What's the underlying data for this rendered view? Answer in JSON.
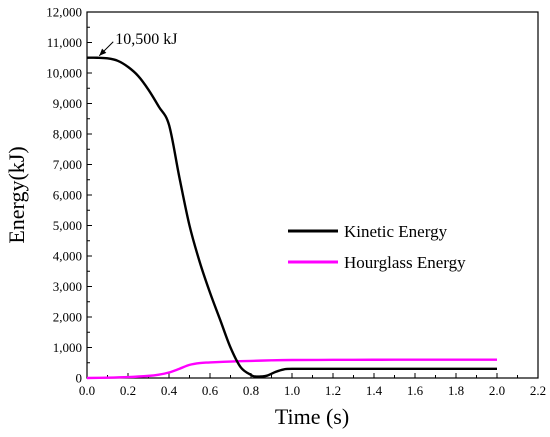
{
  "chart_data": {
    "type": "line",
    "xlabel": "Time (s)",
    "ylabel": "Energy(kJ)",
    "xlim": [
      0,
      2.2
    ],
    "ylim": [
      0,
      12000
    ],
    "x_ticks": [
      "0.0",
      "0.2",
      "0.4",
      "0.6",
      "0.8",
      "1.0",
      "1.2",
      "1.4",
      "1.6",
      "1.8",
      "2.0",
      "2.2"
    ],
    "y_ticks": [
      "0",
      "1,000",
      "2,000",
      "3,000",
      "4,000",
      "5,000",
      "6,000",
      "7,000",
      "8,000",
      "9,000",
      "10,000",
      "11,000",
      "12,000"
    ],
    "grid": false,
    "legend_position": "center-right",
    "series": [
      {
        "name": "Kinetic Energy",
        "color": "#000000",
        "x": [
          0,
          0.05,
          0.1,
          0.15,
          0.2,
          0.25,
          0.3,
          0.35,
          0.4,
          0.45,
          0.5,
          0.55,
          0.6,
          0.65,
          0.7,
          0.75,
          0.8,
          0.82,
          0.85,
          0.88,
          0.92,
          0.96,
          1.0,
          1.2,
          1.4,
          1.6,
          1.8,
          2.0
        ],
        "y": [
          10500,
          10500,
          10480,
          10400,
          10200,
          9900,
          9450,
          8900,
          8300,
          6600,
          5000,
          3800,
          2800,
          1900,
          1000,
          350,
          100,
          50,
          50,
          80,
          200,
          280,
          300,
          300,
          300,
          300,
          300,
          300
        ]
      },
      {
        "name": "Hourglass Energy",
        "color": "#ff00ff",
        "x": [
          0,
          0.1,
          0.2,
          0.3,
          0.35,
          0.4,
          0.45,
          0.5,
          0.55,
          0.6,
          0.7,
          0.8,
          0.9,
          1.0,
          1.2,
          1.4,
          1.6,
          1.8,
          2.0
        ],
        "y": [
          0,
          10,
          30,
          70,
          110,
          180,
          300,
          430,
          490,
          510,
          540,
          560,
          580,
          590,
          595,
          598,
          600,
          600,
          600
        ]
      }
    ],
    "annotations": [
      {
        "text": "10,500 kJ",
        "x": 0.05,
        "y": 10500
      }
    ]
  }
}
